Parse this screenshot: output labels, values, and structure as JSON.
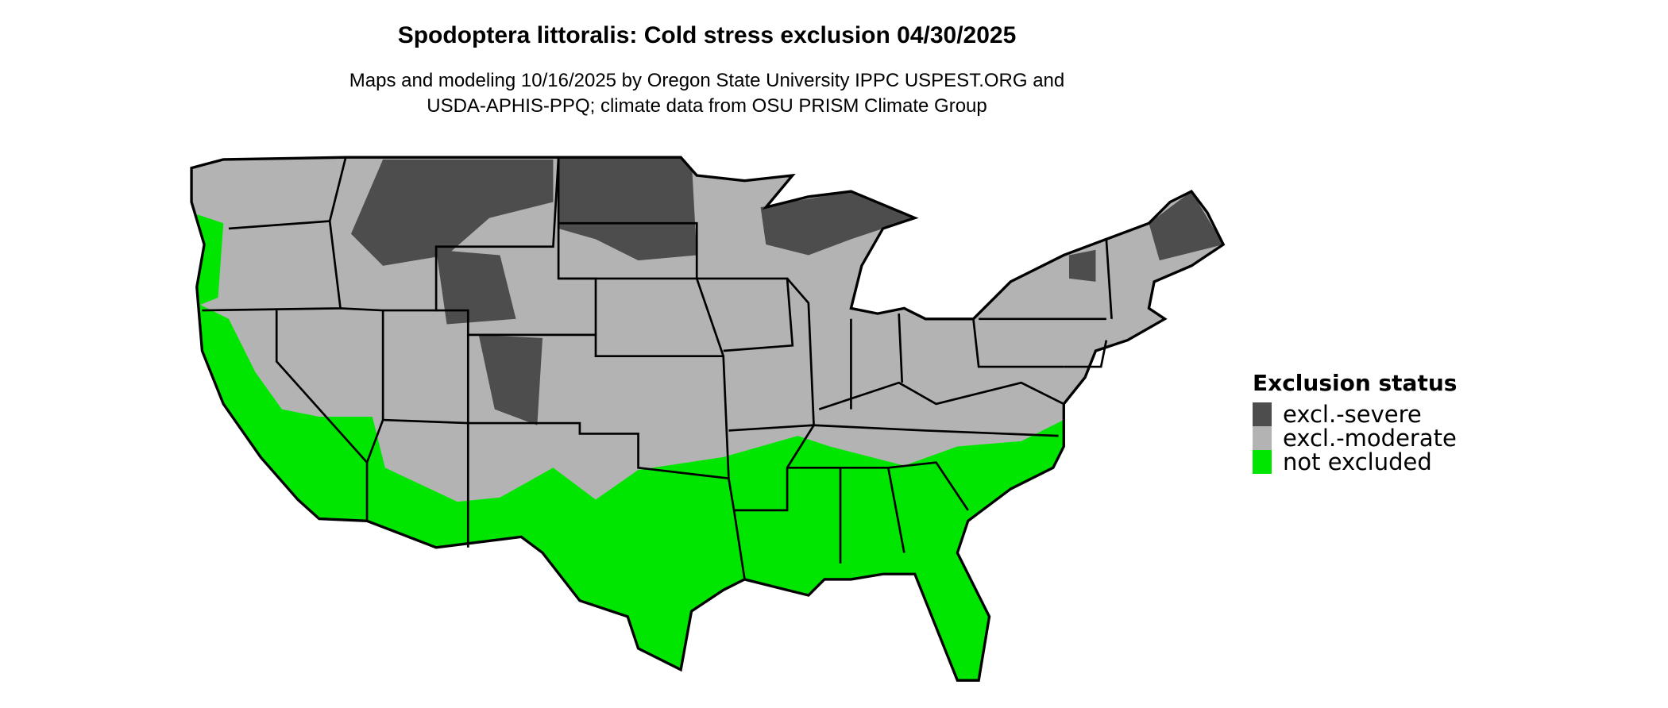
{
  "title": "Spodoptera littoralis: Cold stress exclusion 04/30/2025",
  "subtitle_lines": [
    "Maps and modeling 10/16/2025 by Oregon State University IPPC USPEST.ORG and",
    "USDA-APHIS-PPQ; climate data from OSU PRISM Climate Group"
  ],
  "legend": {
    "title": "Exclusion status",
    "items": [
      {
        "label": "excl.-severe",
        "color": "#4d4d4d"
      },
      {
        "label": "excl.-moderate",
        "color": "#b3b3b3"
      },
      {
        "label": "not excluded",
        "color": "#00e600"
      }
    ]
  }
}
